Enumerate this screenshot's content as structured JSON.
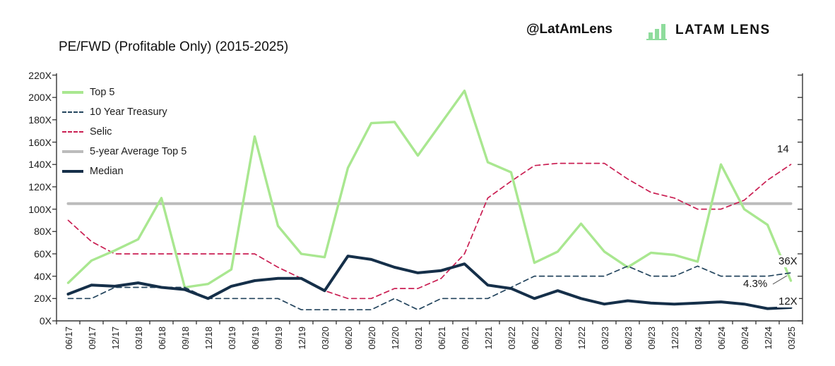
{
  "header": {
    "handle": "@LatAmLens",
    "brand": "LATAM LENS",
    "brand_icon": "bar-chart-icon",
    "brand_icon_color": "#8edc9c"
  },
  "colors": {
    "top5": "#a9e790",
    "treasury": "#24455e",
    "selic": "#ca1f53",
    "average": "#bcbcbc",
    "median": "#152f49",
    "axis": "#333333",
    "text": "#1f1f1f"
  },
  "chart_data": {
    "type": "line",
    "title": "PE/FWD (Profitable Only) (2015-2025)",
    "legend_position": "top-left-inside",
    "grid": false,
    "x_labels": [
      "06/17",
      "09/17",
      "12/17",
      "03/18",
      "06/18",
      "09/18",
      "12/18",
      "03/19",
      "06/19",
      "09/19",
      "12/19",
      "03/20",
      "06/20",
      "09/20",
      "12/20",
      "03/21",
      "06/21",
      "09/21",
      "12/21",
      "03/22",
      "06/22",
      "09/22",
      "12/22",
      "03/23",
      "06/23",
      "09/23",
      "12/23",
      "03/24",
      "06/24",
      "09/24",
      "12/24",
      "03/25"
    ],
    "y_axis": {
      "min": 0,
      "max": 220,
      "tick_step": 20,
      "tick_labels": [
        "0X",
        "20X",
        "40X",
        "60X",
        "80X",
        "100X",
        "120X",
        "140X",
        "160X",
        "180X",
        "200X",
        "220X"
      ]
    },
    "secondary_y_axis": {
      "labels_shown": false,
      "tick_count": 12,
      "note": "unlabeled right axis; Selic and 10 Year Treasury are percentages plotted at 10x on the left scale"
    },
    "series": [
      {
        "name": "Top 5",
        "style": "solid",
        "color": "#a9e790",
        "unit": "X",
        "values": [
          34,
          54,
          63,
          73,
          110,
          30,
          33,
          46,
          165,
          85,
          60,
          57,
          137,
          177,
          178,
          148,
          177,
          206,
          142,
          133,
          52,
          62,
          87,
          62,
          48,
          61,
          59,
          53,
          140,
          100,
          86,
          36
        ]
      },
      {
        "name": "10 Year Treasury",
        "style": "dashed",
        "color": "#24455e",
        "unit": "%",
        "scale_to_left_axis": 10,
        "values_pct": [
          2.0,
          2.0,
          3.0,
          3.0,
          3.0,
          3.0,
          2.0,
          2.0,
          2.0,
          2.0,
          1.0,
          1.0,
          1.0,
          1.0,
          2.0,
          1.0,
          2.0,
          2.0,
          2.0,
          3.0,
          4.0,
          4.0,
          4.0,
          4.0,
          4.9,
          4.0,
          4.0,
          4.9,
          4.0,
          4.0,
          4.0,
          4.3
        ]
      },
      {
        "name": "Selic",
        "style": "dashed",
        "color": "#ca1f53",
        "unit": "%",
        "scale_to_left_axis": 10,
        "values_pct": [
          9.0,
          7.1,
          6.0,
          6.0,
          6.0,
          6.0,
          6.0,
          6.0,
          6.0,
          4.8,
          3.8,
          2.7,
          2.0,
          2.0,
          2.9,
          2.9,
          3.8,
          6.0,
          11.0,
          12.5,
          13.9,
          14.1,
          14.1,
          14.1,
          12.7,
          11.5,
          11.0,
          10.0,
          10.0,
          10.8,
          12.6,
          14.0
        ]
      },
      {
        "name": "5-year Average Top 5",
        "style": "solid",
        "color": "#bcbcbc",
        "unit": "X",
        "constant": 105
      },
      {
        "name": "Median",
        "style": "solid",
        "color": "#152f49",
        "unit": "X",
        "values": [
          24,
          32,
          31,
          34,
          30,
          28,
          20,
          31,
          36,
          38,
          38,
          27,
          58,
          55,
          48,
          43,
          45,
          51,
          32,
          29,
          20,
          27,
          20,
          15,
          18,
          16,
          15,
          16,
          17,
          15,
          11,
          12
        ]
      }
    ],
    "annotations": [
      {
        "text": "14",
        "series": "Selic"
      },
      {
        "text": "36X",
        "series": "Top 5"
      },
      {
        "text": "4.3%",
        "series": "10 Year Treasury"
      },
      {
        "text": "12X",
        "series": "Median"
      }
    ]
  }
}
